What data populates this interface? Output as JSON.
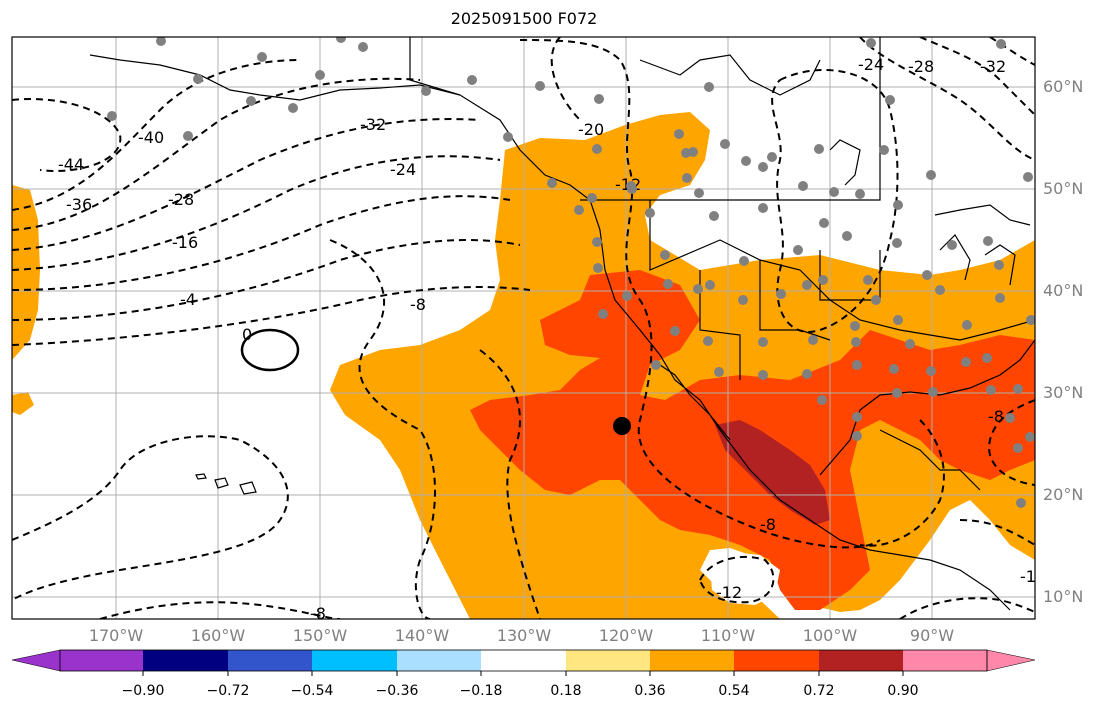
{
  "title": "2025091500 F072",
  "lat_labels": [
    "60°N",
    "50°N",
    "40°N",
    "30°N",
    "20°N",
    "10°N"
  ],
  "lon_labels": [
    "170°W",
    "160°W",
    "150°W",
    "140°W",
    "130°W",
    "120°W",
    "110°W",
    "100°W",
    "90°W"
  ],
  "colorbar": {
    "ticks": [
      "−0.90",
      "−0.72",
      "−0.54",
      "−0.36",
      "−0.18",
      "0.18",
      "0.36",
      "0.54",
      "0.72",
      "0.90"
    ],
    "colors": [
      "#9933cc",
      "#000080",
      "#3355cc",
      "#00bfff",
      "#aadfff",
      "#ffffff",
      "#ffe680",
      "#ffa500",
      "#ff4500",
      "#b22222",
      "#ff88aa"
    ]
  },
  "fill_colors": {
    "orange": "#ffa500",
    "red": "#ff4500",
    "darkred": "#b22222"
  },
  "contour_labels": [
    "-32",
    "-24",
    "-40",
    "-44",
    "-36",
    "-28",
    "-16",
    "-4",
    "0",
    "-8",
    "-20",
    "-12",
    "-24",
    "-28",
    "-32",
    "-8",
    "-12",
    "-8",
    "-8",
    "-1"
  ],
  "marker": "black-dot"
}
